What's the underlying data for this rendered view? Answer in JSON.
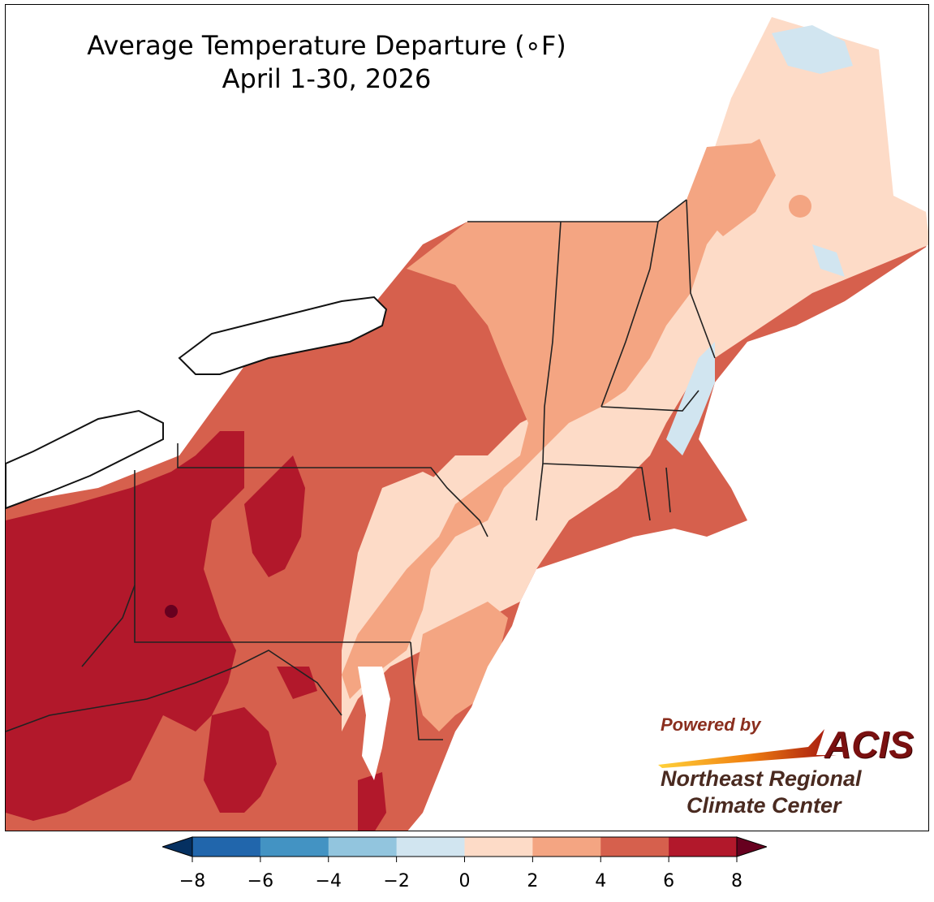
{
  "title": {
    "line1": "Average Temperature Departure (∘F)",
    "line2": "April 1-30, 2026"
  },
  "logo": {
    "powered_by": "Powered by",
    "brand": "ACIS",
    "org_line1": "Northeast Regional",
    "org_line2": "Climate Center"
  },
  "legend": {
    "ticks": [
      "−8",
      "−6",
      "−4",
      "−2",
      "0",
      "2",
      "4",
      "6",
      "8"
    ],
    "bins": [
      {
        "range": "-8 to -6",
        "color": "#2166ac"
      },
      {
        "range": "-6 to -4",
        "color": "#4393c3"
      },
      {
        "range": "-4 to -2",
        "color": "#92c5de"
      },
      {
        "range": "-2 to 0",
        "color": "#d1e5f0"
      },
      {
        "range": "0 to 2",
        "color": "#fddbc7"
      },
      {
        "range": "2 to 4",
        "color": "#f4a582"
      },
      {
        "range": "4 to 6",
        "color": "#d6604d"
      },
      {
        "range": "6 to 8",
        "color": "#b2182b"
      }
    ],
    "under_color": "#053061",
    "over_color": "#67001f"
  },
  "colors": {
    "land_low": "#fddbc7",
    "land_mid": "#f4a582",
    "land_high": "#d6604d",
    "land_max": "#b2182b",
    "land_extreme": "#67001f",
    "cool": "#d1e5f0",
    "water": "#ffffff",
    "border": "#222222"
  }
}
